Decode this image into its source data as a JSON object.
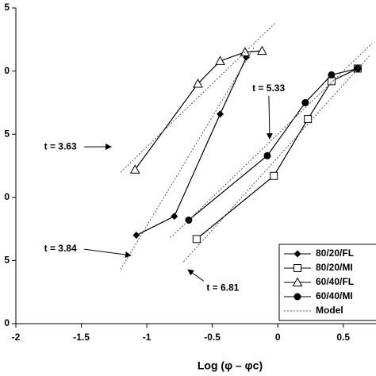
{
  "chart_data": {
    "type": "scatter-line",
    "xlabel": "Log (φ – φc)",
    "xlim": [
      -2,
      0.75
    ],
    "xticks": [
      -2,
      -1.5,
      -1,
      -0.5,
      0,
      0.5
    ],
    "ylim": [
      0,
      2.5
    ],
    "yticks": [
      0,
      {
        "value": 0.5,
        "label": "5"
      },
      {
        "value": 1,
        "label": "0"
      },
      {
        "value": 1.5,
        "label": "5"
      },
      {
        "value": 2,
        "label": "0"
      },
      {
        "value": 2.5,
        "label": "5"
      }
    ],
    "series": [
      {
        "name": "80/20/FL",
        "color": "#000",
        "marker": "diamond",
        "x": [
          -1.08,
          -0.79,
          -0.44,
          -0.24
        ],
        "values": [
          0.7,
          0.85,
          1.66,
          2.11
        ]
      },
      {
        "name": "80/20/MI",
        "color": "#000",
        "marker": "square-open",
        "x": [
          -0.62,
          -0.03,
          0.23,
          0.41,
          0.61
        ],
        "values": [
          0.67,
          1.17,
          1.62,
          1.92,
          2.02
        ]
      },
      {
        "name": "60/40/FL",
        "color": "#000",
        "marker": "triangle-open",
        "x": [
          -1.09,
          -0.61,
          -0.44,
          -0.25,
          -0.12
        ],
        "values": [
          1.22,
          1.9,
          2.08,
          2.15,
          2.16
        ]
      },
      {
        "name": "60/40/MI",
        "color": "#000",
        "marker": "circle",
        "x": [
          -0.68,
          -0.08,
          0.21,
          0.41,
          0.61
        ],
        "values": [
          0.82,
          1.33,
          1.75,
          1.97,
          2.02
        ]
      },
      {
        "name": "Model",
        "color": "#555",
        "marker": "none",
        "dashed": true,
        "x": [
          -1.2,
          -0.02,
          null,
          -1.2,
          -0.18,
          null,
          -0.82,
          0.72,
          null,
          -0.72,
          0.7
        ],
        "values": [
          1.2,
          2.38,
          null,
          0.43,
          2.19,
          null,
          0.68,
          2.22,
          null,
          0.49,
          2.12
        ]
      }
    ],
    "annotations": [
      {
        "text": "t = 3.63",
        "x": -1.66,
        "y": 1.4
      },
      {
        "text": "t = 3.84",
        "x": -1.66,
        "y": 0.59
      },
      {
        "text": "t = 5.33",
        "x": -0.07,
        "y": 1.86
      },
      {
        "text": "t = 6.81",
        "x": -0.42,
        "y": 0.28
      }
    ],
    "legend": "lower right"
  }
}
